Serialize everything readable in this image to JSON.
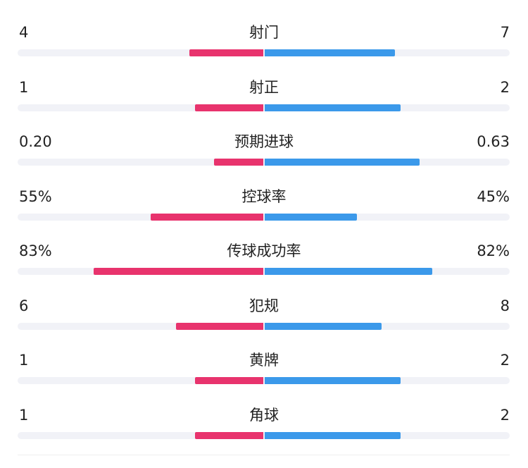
{
  "chart_data": {
    "type": "bar",
    "orientation": "horizontal-diverging",
    "colors": {
      "left": "#e8336d",
      "right": "#3b99ea",
      "track": "#f1f2f7"
    },
    "rows": [
      {
        "label": "射门",
        "left_text": "4",
        "right_text": "7",
        "left": 4,
        "right": 7
      },
      {
        "label": "射正",
        "left_text": "1",
        "right_text": "2",
        "left": 1,
        "right": 2
      },
      {
        "label": "预期进球",
        "left_text": "0.20",
        "right_text": "0.63",
        "left": 0.2,
        "right": 0.63
      },
      {
        "label": "控球率",
        "left_text": "55%",
        "right_text": "45%",
        "left": 55,
        "right": 45
      },
      {
        "label": "传球成功率",
        "left_text": "83%",
        "right_text": "82%",
        "left": 83,
        "right": 82
      },
      {
        "label": "犯规",
        "left_text": "6",
        "right_text": "8",
        "left": 6,
        "right": 8
      },
      {
        "label": "黄牌",
        "left_text": "1",
        "right_text": "2",
        "left": 1,
        "right": 2
      },
      {
        "label": "角球",
        "left_text": "1",
        "right_text": "2",
        "left": 1,
        "right": 2
      }
    ]
  }
}
